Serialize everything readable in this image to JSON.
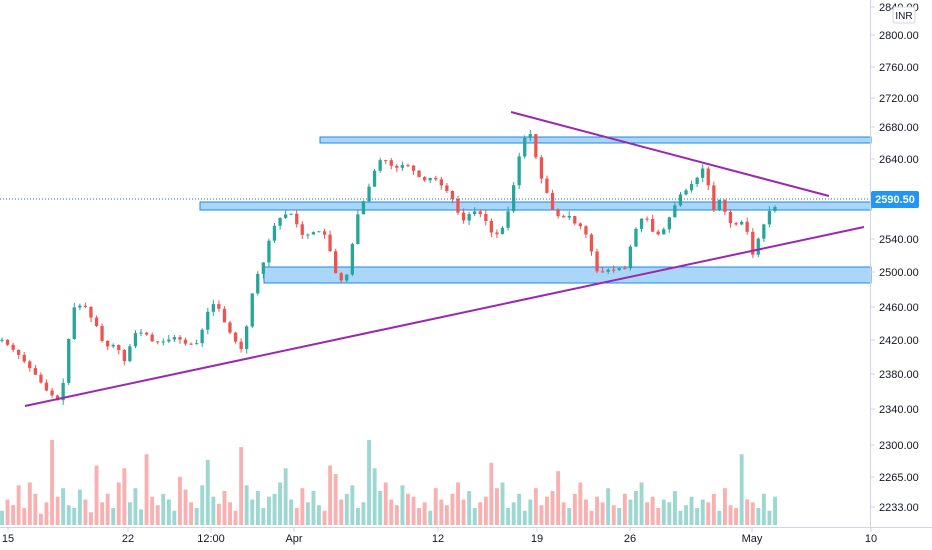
{
  "chart_data": {
    "type": "candlestick",
    "currency": "INR",
    "last_price": "2590.50",
    "y_ticks": [
      {
        "label": "2840.00",
        "value": 2840
      },
      {
        "label": "2800.00",
        "value": 2800
      },
      {
        "label": "2760.00",
        "value": 2760
      },
      {
        "label": "2720.00",
        "value": 2720
      },
      {
        "label": "2680.00",
        "value": 2680
      },
      {
        "label": "2640.00",
        "value": 2640
      },
      {
        "label": "2540.00",
        "value": 2540
      },
      {
        "label": "2500.00",
        "value": 2500
      },
      {
        "label": "2460.00",
        "value": 2460
      },
      {
        "label": "2420.00",
        "value": 2420
      },
      {
        "label": "2380.00",
        "value": 2380
      },
      {
        "label": "2340.00",
        "value": 2340
      },
      {
        "label": "2300.00",
        "value": 2300
      },
      {
        "label": "2265.00",
        "value": 2265
      },
      {
        "label": "2233.00",
        "value": 2233
      }
    ],
    "x_ticks": [
      "15",
      "22",
      "12:00",
      "Apr",
      "12",
      "19",
      "26",
      "May",
      "10"
    ],
    "price_path": [
      [
        0,
        2424
      ],
      [
        3,
        2405
      ],
      [
        6,
        2380
      ],
      [
        8,
        2360
      ],
      [
        10,
        2348
      ],
      [
        11,
        2372
      ],
      [
        12,
        2430
      ],
      [
        13,
        2468
      ],
      [
        15,
        2465
      ],
      [
        16,
        2450
      ],
      [
        17,
        2440
      ],
      [
        18,
        2420
      ],
      [
        19,
        2415
      ],
      [
        20,
        2418
      ],
      [
        21,
        2410
      ],
      [
        22,
        2395
      ],
      [
        23,
        2420
      ],
      [
        24,
        2435
      ],
      [
        26,
        2430
      ],
      [
        27,
        2420
      ],
      [
        29,
        2422
      ],
      [
        31,
        2428
      ],
      [
        33,
        2418
      ],
      [
        35,
        2420
      ],
      [
        37,
        2465
      ],
      [
        38,
        2470
      ],
      [
        39,
        2460
      ],
      [
        40,
        2440
      ],
      [
        41,
        2430
      ],
      [
        42,
        2418
      ],
      [
        43,
        2410
      ],
      [
        44,
        2455
      ],
      [
        45,
        2495
      ],
      [
        46,
        2512
      ],
      [
        47,
        2525
      ],
      [
        48,
        2560
      ],
      [
        50,
        2580
      ],
      [
        52,
        2582
      ],
      [
        53,
        2560
      ],
      [
        54,
        2552
      ],
      [
        55,
        2558
      ],
      [
        57,
        2560
      ],
      [
        58,
        2552
      ],
      [
        59,
        2522
      ],
      [
        60,
        2496
      ],
      [
        61,
        2500
      ],
      [
        62,
        2510
      ],
      [
        63,
        2572
      ],
      [
        65,
        2605
      ],
      [
        67,
        2645
      ],
      [
        68,
        2652
      ],
      [
        70,
        2638
      ],
      [
        71,
        2640
      ],
      [
        72,
        2645
      ],
      [
        74,
        2632
      ],
      [
        75,
        2622
      ],
      [
        77,
        2628
      ],
      [
        78,
        2620
      ],
      [
        80,
        2606
      ],
      [
        81,
        2592
      ],
      [
        82,
        2570
      ],
      [
        83,
        2578
      ],
      [
        84,
        2586
      ],
      [
        85,
        2582
      ],
      [
        86,
        2580
      ],
      [
        87,
        2560
      ],
      [
        88,
        2555
      ],
      [
        89,
        2558
      ],
      [
        90,
        2575
      ],
      [
        91,
        2603
      ],
      [
        92,
        2645
      ],
      [
        93,
        2670
      ],
      [
        94,
        2690
      ],
      [
        95,
        2662
      ],
      [
        96,
        2630
      ],
      [
        97,
        2615
      ],
      [
        98,
        2590
      ],
      [
        99,
        2580
      ],
      [
        100,
        2575
      ],
      [
        101,
        2582
      ],
      [
        102,
        2570
      ],
      [
        103,
        2568
      ],
      [
        104,
        2560
      ],
      [
        105,
        2542
      ],
      [
        106,
        2510
      ],
      [
        107,
        2508
      ],
      [
        108,
        2512
      ],
      [
        109,
        2510
      ],
      [
        110,
        2515
      ],
      [
        111,
        2508
      ],
      [
        112,
        2536
      ],
      [
        113,
        2560
      ],
      [
        114,
        2575
      ],
      [
        115,
        2578
      ],
      [
        116,
        2560
      ],
      [
        117,
        2555
      ],
      [
        118,
        2560
      ],
      [
        119,
        2575
      ],
      [
        120,
        2590
      ],
      [
        121,
        2605
      ],
      [
        122,
        2610
      ],
      [
        123,
        2618
      ],
      [
        124,
        2625
      ],
      [
        125,
        2640
      ],
      [
        126,
        2620
      ],
      [
        127,
        2585
      ],
      [
        128,
        2600
      ],
      [
        129,
        2585
      ],
      [
        130,
        2570
      ],
      [
        131,
        2568
      ],
      [
        132,
        2572
      ],
      [
        133,
        2560
      ],
      [
        134,
        2530
      ],
      [
        135,
        2550
      ],
      [
        136,
        2568
      ],
      [
        137,
        2585
      ],
      [
        138,
        2590
      ]
    ],
    "volume": [
      10,
      18,
      14,
      28,
      12,
      30,
      22,
      8,
      16,
      60,
      20,
      26,
      14,
      12,
      25,
      18,
      9,
      42,
      16,
      22,
      12,
      30,
      40,
      16,
      26,
      11,
      50,
      20,
      14,
      22,
      18,
      10,
      34,
      25,
      16,
      12,
      28,
      46,
      20,
      15,
      24,
      16,
      10,
      55,
      28,
      18,
      24,
      12,
      20,
      22,
      30,
      40,
      18,
      12,
      26,
      16,
      24,
      14,
      10,
      42,
      36,
      18,
      22,
      28,
      12,
      16,
      60,
      40,
      24,
      30,
      18,
      14,
      28,
      22,
      20,
      12,
      16,
      10,
      26,
      18,
      14,
      22,
      30,
      18,
      24,
      12,
      16,
      20,
      44,
      26,
      30,
      12,
      16,
      22,
      10,
      18,
      26,
      14,
      20,
      24,
      38,
      16,
      12,
      22,
      30,
      18,
      10,
      20,
      16,
      26,
      14,
      12,
      22,
      18,
      24,
      30,
      16,
      20,
      12,
      18,
      16,
      24,
      10,
      14,
      20,
      12,
      18,
      16,
      22,
      10,
      26,
      14,
      12,
      50,
      18,
      16,
      12,
      22,
      10,
      20
    ],
    "zones": [
      {
        "from_pct": 0.0,
        "to_pct": 0.0
      },
      {
        "low": 2676,
        "high": 2684
      },
      {
        "low": 2582,
        "high": 2593
      },
      {
        "low": 2485,
        "high": 2505
      }
    ],
    "trendlines": [
      {
        "from": {
          "x_idx": 3,
          "price": 2344
        },
        "to": {
          "x_idx": 146,
          "price": 2557
        }
      },
      {
        "from": {
          "x_idx": 93,
          "price": 2698
        },
        "to": {
          "x_idx": 143,
          "price": 2598
        }
      }
    ]
  }
}
